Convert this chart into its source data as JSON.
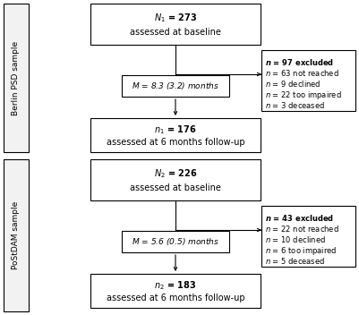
{
  "bg_color": "#ffffff",
  "section1": {
    "sidebar_label": "Berlin PSD sample",
    "box1_line1": "$\\boldsymbol{N_1}$ = 273",
    "box1_line2": "assessed at baseline",
    "middle_label": "$M$ = 8.3 (3.2) months",
    "box2_line1": "$\\boldsymbol{n_1}$ = 176",
    "box2_line2": "assessed at 6 months follow-up",
    "excl_line1": "$\\boldsymbol{n}$ = 97 excluded",
    "excl_line2": "$n$ = 63 not reached",
    "excl_line3": "$n$ = 9 declined",
    "excl_line4": "$n$ = 22 too impaired",
    "excl_line5": "$n$ = 3 deceased"
  },
  "section2": {
    "sidebar_label": "PoStDAM sample",
    "box1_line1": "$\\boldsymbol{N_2}$ = 226",
    "box1_line2": "assessed at baseline",
    "middle_label": "$M$ = 5.6 (0.5) months",
    "box2_line1": "$\\boldsymbol{n_2}$ = 183",
    "box2_line2": "assessed at 6 months follow-up",
    "excl_line1": "$\\boldsymbol{n}$ = 43 excluded",
    "excl_line2": "$n$ = 22 not reached",
    "excl_line3": "$n$ = 10 declined",
    "excl_line4": "$n$ = 6 too impaired",
    "excl_line5": "$n$ = 5 deceased"
  }
}
